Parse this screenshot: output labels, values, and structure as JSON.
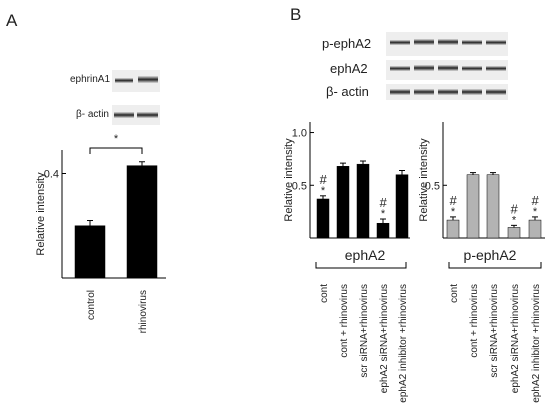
{
  "panels": [
    "A",
    "B"
  ],
  "blots": {
    "a": [
      "ephrinA1",
      "β- actin"
    ],
    "b": [
      "p-ephA2",
      "ephA2",
      "β- actin"
    ]
  },
  "chart_data": [
    {
      "type": "bar",
      "y_label": "Relative intensity",
      "categories": [
        "control",
        "rhinovirus"
      ],
      "values": [
        0.2,
        0.43
      ],
      "errors": [
        0.02,
        0.015
      ],
      "color": "#000000",
      "ylim": [
        0,
        0.49
      ],
      "yticks": [
        0.4
      ],
      "significance": "*"
    },
    {
      "type": "bar",
      "y_label": "Relative intensity",
      "x_label": "ephA2",
      "categories": [
        "cont",
        "cont + rhinovirus",
        "scr siRNA+rhinovirus",
        "ephA2 siRNA+rhinovirus",
        "ephA2 inhibitor +rhinovirus"
      ],
      "values": [
        0.37,
        0.68,
        0.7,
        0.14,
        0.6
      ],
      "errors": [
        0.03,
        0.03,
        0.03,
        0.04,
        0.04
      ],
      "color": "#000000",
      "hash_marks": [
        "#",
        null,
        null,
        "#",
        null
      ],
      "star_marks": [
        "*",
        null,
        null,
        "*",
        null
      ],
      "ylim": [
        0,
        1.1
      ],
      "yticks": [
        0.5,
        {
          "value": 1,
          "label": "1.0"
        }
      ]
    },
    {
      "type": "bar",
      "y_label": "Relative intensity",
      "x_label": "p-ephA2",
      "categories": [
        "cont",
        "cont + rhinovirus",
        "scr siRNA+rhinovirus",
        "ephA2 siRNA+rhinovirus",
        "ephA2 inhibitor +rhinovirus"
      ],
      "values": [
        0.17,
        0.6,
        0.6,
        0.1,
        0.17
      ],
      "errors": [
        0.03,
        0.02,
        0.02,
        0.02,
        0.03
      ],
      "color": "#b3b3b3",
      "hash_marks": [
        "#",
        null,
        null,
        "#",
        "#"
      ],
      "star_marks": [
        "*",
        null,
        null,
        "*",
        "*"
      ],
      "ylim": [
        0,
        1.1
      ],
      "yticks": [
        0.5
      ]
    }
  ]
}
